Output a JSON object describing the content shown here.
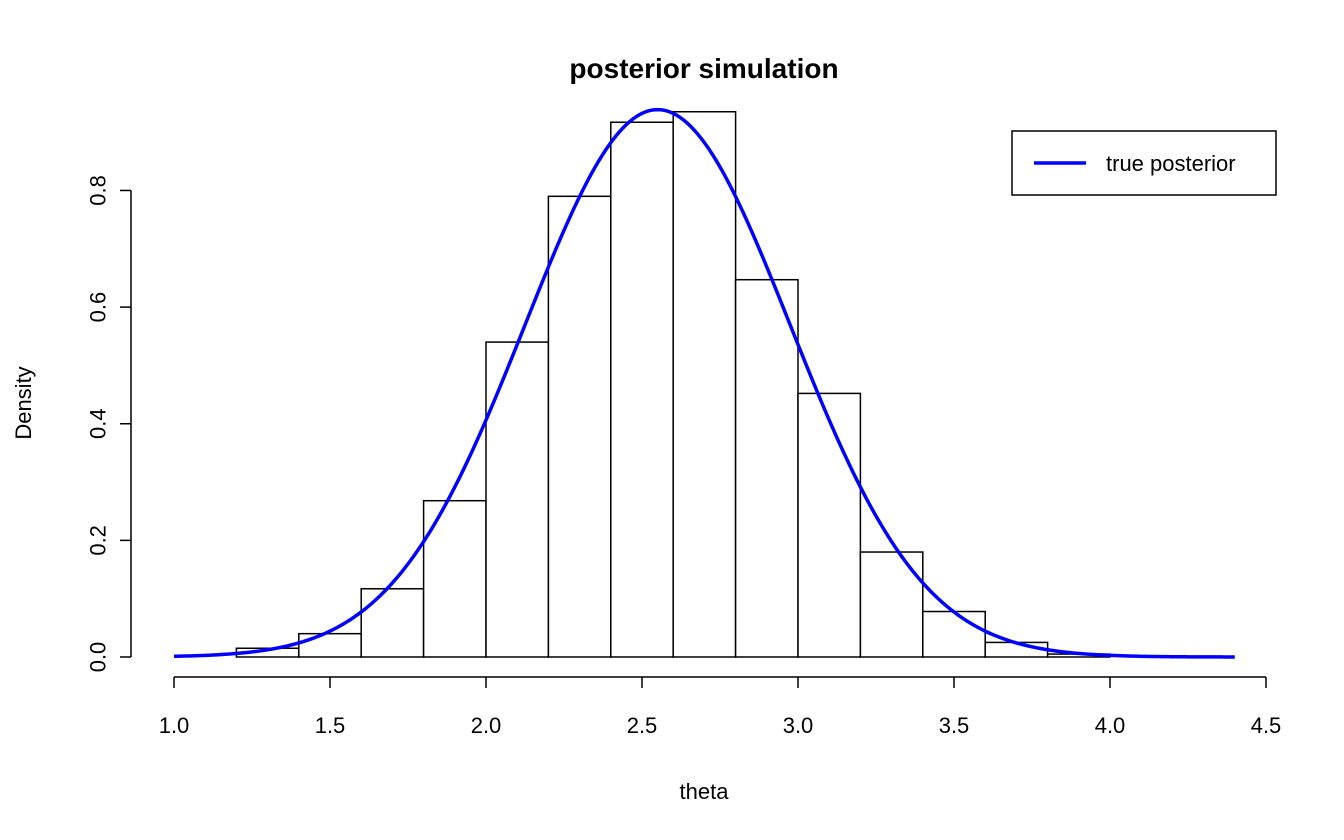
{
  "chart_data": {
    "type": "bar",
    "title": "posterior simulation",
    "xlabel": "theta",
    "ylabel": "Density",
    "xlim": [
      1.0,
      4.5
    ],
    "ylim": [
      0,
      0.95
    ],
    "xticks": [
      1.0,
      1.5,
      2.0,
      2.5,
      3.0,
      3.5,
      4.0,
      4.5
    ],
    "xtick_labels": [
      "1.0",
      "1.5",
      "2.0",
      "2.5",
      "3.0",
      "3.5",
      "4.0",
      "4.5"
    ],
    "yticks": [
      0.0,
      0.2,
      0.4,
      0.6,
      0.8
    ],
    "ytick_labels": [
      "0.0",
      "0.2",
      "0.4",
      "0.6",
      "0.8"
    ],
    "histogram": {
      "bin_edges": [
        1.2,
        1.4,
        1.6,
        1.8,
        2.0,
        2.2,
        2.4,
        2.6,
        2.8,
        3.0,
        3.2,
        3.4,
        3.6,
        3.8,
        4.0
      ],
      "densities": [
        0.015,
        0.04,
        0.117,
        0.268,
        0.54,
        0.79,
        0.917,
        0.935,
        0.647,
        0.452,
        0.18,
        0.078,
        0.025,
        0.005
      ]
    },
    "series": [
      {
        "name": "true posterior",
        "type": "line",
        "color": "#0000ff",
        "distribution": {
          "family": "normal",
          "mean": 2.55,
          "sd": 0.425
        },
        "x_range": [
          1.0,
          4.4
        ]
      }
    ],
    "legend": {
      "position": "top-right",
      "entries": [
        {
          "label": "true posterior",
          "color": "#0000ff"
        }
      ]
    },
    "grid": false
  }
}
